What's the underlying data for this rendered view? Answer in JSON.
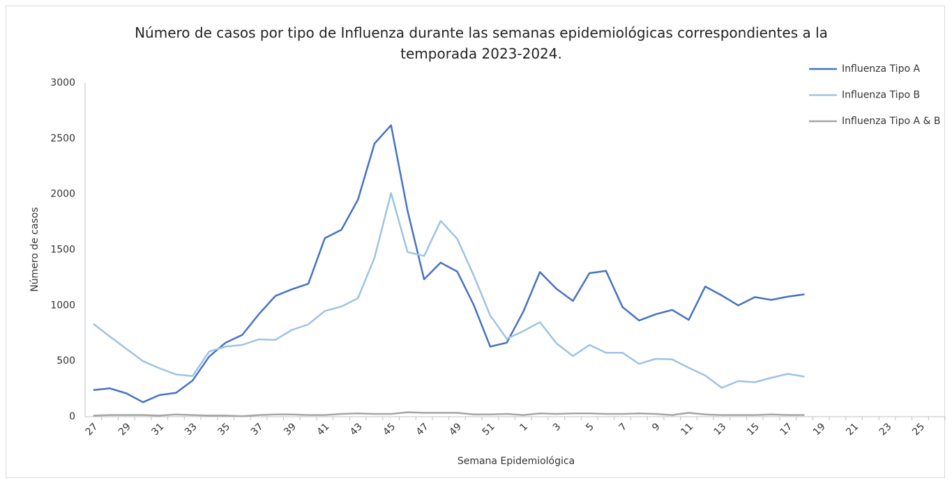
{
  "chart_data": {
    "type": "line",
    "title": "Número de casos por tipo de Influenza durante las semanas epidemiológicas correspondientes a la temporada 2023-2024.",
    "x_label": "Semana Epidemiológica",
    "y_label": "Número de casos",
    "categories": [
      "27",
      null,
      "29",
      null,
      "31",
      null,
      "33",
      null,
      "35",
      null,
      "37",
      null,
      "39",
      null,
      "41",
      null,
      "43",
      null,
      "45",
      null,
      "47",
      null,
      "49",
      null,
      "51",
      null,
      "1",
      null,
      "3",
      null,
      "5",
      null,
      "7",
      null,
      "9",
      null,
      "11",
      null,
      "13",
      null,
      "15",
      null,
      "17",
      null,
      "19",
      null,
      "21",
      null,
      "23",
      null,
      "25",
      null
    ],
    "series": [
      {
        "name": "Influenza Tipo A",
        "color": "#4472c4",
        "values": [
          240,
          255,
          210,
          130,
          195,
          215,
          325,
          540,
          665,
          735,
          920,
          1085,
          1145,
          1195,
          1605,
          1680,
          1950,
          2455,
          2620,
          1850,
          1235,
          1385,
          1305,
          1005,
          630,
          665,
          945,
          1300,
          1150,
          1040,
          1290,
          1310,
          985,
          865,
          920,
          960,
          870,
          1170,
          1090,
          1000,
          1075,
          1050,
          1080,
          1100,
          null,
          null,
          null,
          null,
          null,
          null,
          null,
          null
        ]
      },
      {
        "name": "Influenza Tipo B",
        "color": "#9dc3e6",
        "values": [
          835,
          720,
          610,
          500,
          435,
          380,
          365,
          585,
          630,
          645,
          695,
          690,
          780,
          830,
          950,
          990,
          1065,
          1430,
          2010,
          1480,
          1445,
          1760,
          1600,
          1270,
          910,
          700,
          770,
          850,
          660,
          545,
          645,
          575,
          575,
          475,
          520,
          515,
          440,
          370,
          260,
          320,
          310,
          350,
          385,
          360,
          null,
          null,
          null,
          null,
          null,
          null,
          null,
          null
        ]
      },
      {
        "name": "Influenza Tipo A & B",
        "color": "#a5a5a5",
        "values": [
          10,
          15,
          15,
          15,
          10,
          20,
          15,
          10,
          10,
          5,
          15,
          20,
          20,
          15,
          15,
          25,
          30,
          25,
          25,
          40,
          35,
          35,
          35,
          20,
          20,
          25,
          15,
          30,
          25,
          30,
          30,
          25,
          25,
          30,
          25,
          15,
          35,
          20,
          15,
          15,
          15,
          20,
          15,
          15,
          null,
          null,
          null,
          null,
          null,
          null,
          null,
          null
        ]
      }
    ],
    "ylim": [
      0,
      3000
    ],
    "yticks": [
      0,
      500,
      1000,
      1500,
      2000,
      2500,
      3000
    ],
    "grid": false,
    "legend": "top-right"
  }
}
